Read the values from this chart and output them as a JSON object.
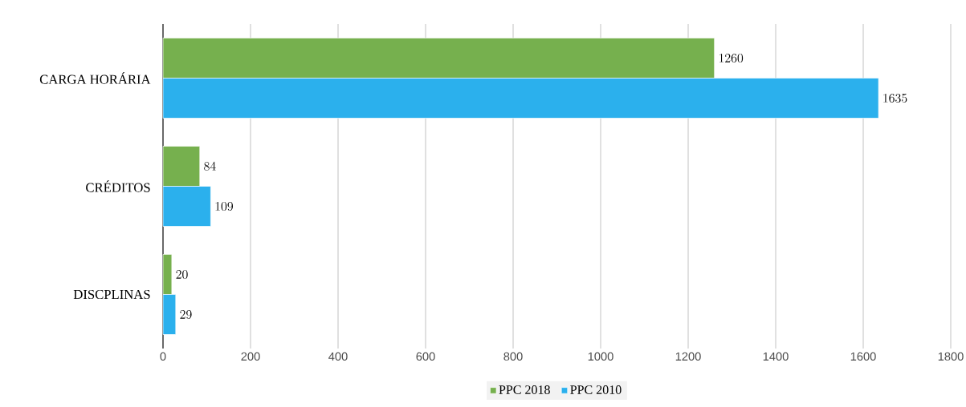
{
  "chart_data": {
    "type": "bar",
    "orientation": "horizontal",
    "categories": [
      "CARGA HORÁRIA",
      "CRÉDITOS",
      "DISCPLINAS"
    ],
    "series": [
      {
        "name": "PPC 2018",
        "color": "#76b04e",
        "values": [
          1260,
          84,
          20
        ]
      },
      {
        "name": "PPC 2010",
        "color": "#2bb0ed",
        "values": [
          1635,
          109,
          29
        ]
      }
    ],
    "xlim": [
      0,
      1800
    ],
    "xticks": [
      0,
      200,
      400,
      600,
      800,
      1000,
      1200,
      1400,
      1600,
      1800
    ],
    "grid": "x",
    "legend": "bottom",
    "data_labels": true
  }
}
